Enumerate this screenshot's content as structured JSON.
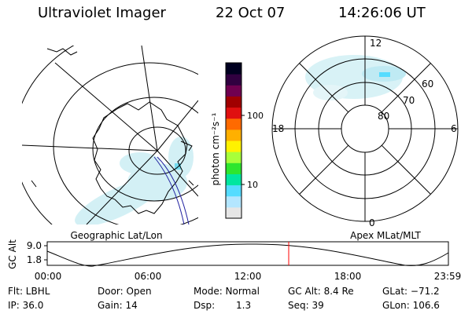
{
  "header": {
    "title": "Ultraviolet Imager",
    "date": "22 Oct 07",
    "time": "14:26:06 UT"
  },
  "colorbar": {
    "label": "photon cm⁻²s⁻¹",
    "tick_labels": [
      "100",
      "10"
    ],
    "colors": [
      "#e6e6e6",
      "#b3e6ff",
      "#55dcff",
      "#00e6a0",
      "#2ee62e",
      "#a8ff3a",
      "#fff200",
      "#ffb000",
      "#ff6a00",
      "#e01010",
      "#a00000",
      "#700050",
      "#300040",
      "#000020"
    ]
  },
  "left_panel": {
    "caption": "Geographic Lat/Lon"
  },
  "right_panel": {
    "caption": "Apex MLat/MLT",
    "mlt_labels": [
      "12",
      "18",
      "6",
      "0"
    ],
    "lat_labels": [
      "60",
      "70",
      "80"
    ],
    "aurora_color": "#cfeff5",
    "aurora_peak_color": "#55dcff"
  },
  "altitude_plot": {
    "ylabel": "GC Alt",
    "y_ticks": [
      "9.0",
      "1.8"
    ],
    "x_ticks": [
      "00:00",
      "06:00",
      "12:00",
      "18:00",
      "23:59"
    ],
    "marker_time": "14:26:06",
    "marker_color": "#ff0000"
  },
  "info": {
    "filter": "Flt: LBHL",
    "ip": "IP: 36.0",
    "door": "Door: Open",
    "gain": "Gain: 14",
    "mode": "Mode: Normal",
    "dsp_label": "Dsp:",
    "dsp_value": "1.3",
    "gc_alt": "GC Alt: 8.4 Re",
    "seq": "Seq: 39",
    "glat": "GLat: −71.2",
    "glon": "GLon: 106.6"
  }
}
